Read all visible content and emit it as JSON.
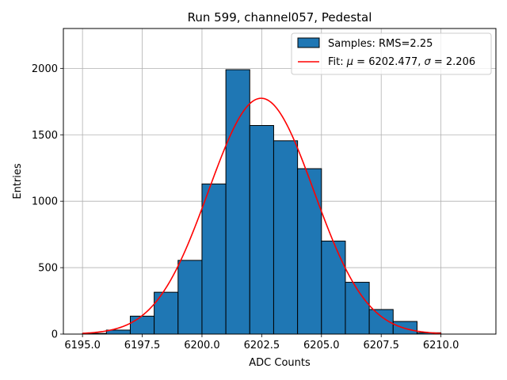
{
  "chart_data": {
    "type": "bar",
    "title": "Run 599, channel057, Pedestal",
    "xlabel": "ADC Counts",
    "ylabel": "Entries",
    "xlim": [
      6194.2,
      6212.3
    ],
    "ylim": [
      0,
      2300
    ],
    "grid": true,
    "legend_position": "top-right",
    "xticks": [
      6195.0,
      6197.5,
      6200.0,
      6202.5,
      6205.0,
      6207.5,
      6210.0
    ],
    "xtick_labels": [
      "6195.0",
      "6197.5",
      "6200.0",
      "6202.5",
      "6205.0",
      "6207.5",
      "6210.0"
    ],
    "yticks": [
      0,
      500,
      1000,
      1500,
      2000
    ],
    "ytick_labels": [
      "0",
      "500",
      "1000",
      "1500",
      "2000"
    ],
    "bin_edges": [
      6195,
      6196,
      6197,
      6198,
      6199,
      6200,
      6201,
      6202,
      6203,
      6204,
      6205,
      6206,
      6207,
      6208,
      6209,
      6210
    ],
    "series": [
      {
        "name": "Samples: RMS=2.25",
        "kind": "histogram",
        "color": "#1f77b4",
        "edgecolor": "#000000",
        "values": [
          5,
          30,
          135,
          315,
          555,
          1130,
          1990,
          1570,
          1455,
          1245,
          700,
          390,
          185,
          95,
          10
        ]
      },
      {
        "name": "Fit: μ = 6202.477, σ = 2.206",
        "legend_prefix": "Fit: ",
        "legend_mu_symbol": "μ",
        "legend_mu_value": " = 6202.477, ",
        "legend_sigma_symbol": "σ",
        "legend_sigma_value": " = 2.206",
        "kind": "gaussian",
        "color": "#ff0000",
        "mu": 6202.477,
        "sigma": 2.206,
        "amplitude": 1775,
        "x_range": [
          6195,
          6210
        ]
      }
    ]
  }
}
